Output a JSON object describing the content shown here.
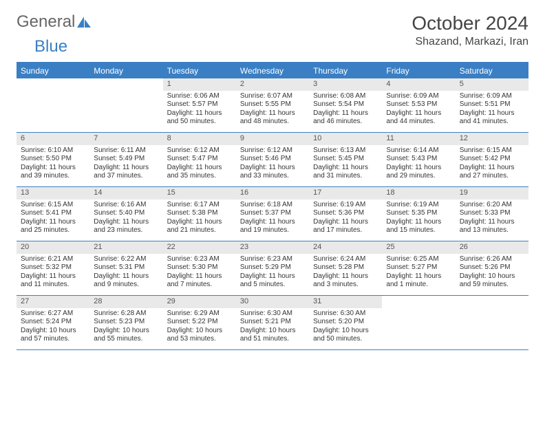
{
  "logo": {
    "text1": "General",
    "text2": "Blue"
  },
  "title": "October 2024",
  "location": "Shazand, Markazi, Iran",
  "colors": {
    "accent": "#3a7fc4",
    "header_bg": "#3a7fc4",
    "daynum_bg": "#e9e9e9"
  },
  "dayNames": [
    "Sunday",
    "Monday",
    "Tuesday",
    "Wednesday",
    "Thursday",
    "Friday",
    "Saturday"
  ],
  "weeks": [
    [
      {
        "n": "",
        "sr": "",
        "ss": "",
        "dl": ""
      },
      {
        "n": "",
        "sr": "",
        "ss": "",
        "dl": ""
      },
      {
        "n": "1",
        "sr": "Sunrise: 6:06 AM",
        "ss": "Sunset: 5:57 PM",
        "dl": "Daylight: 11 hours and 50 minutes."
      },
      {
        "n": "2",
        "sr": "Sunrise: 6:07 AM",
        "ss": "Sunset: 5:55 PM",
        "dl": "Daylight: 11 hours and 48 minutes."
      },
      {
        "n": "3",
        "sr": "Sunrise: 6:08 AM",
        "ss": "Sunset: 5:54 PM",
        "dl": "Daylight: 11 hours and 46 minutes."
      },
      {
        "n": "4",
        "sr": "Sunrise: 6:09 AM",
        "ss": "Sunset: 5:53 PM",
        "dl": "Daylight: 11 hours and 44 minutes."
      },
      {
        "n": "5",
        "sr": "Sunrise: 6:09 AM",
        "ss": "Sunset: 5:51 PM",
        "dl": "Daylight: 11 hours and 41 minutes."
      }
    ],
    [
      {
        "n": "6",
        "sr": "Sunrise: 6:10 AM",
        "ss": "Sunset: 5:50 PM",
        "dl": "Daylight: 11 hours and 39 minutes."
      },
      {
        "n": "7",
        "sr": "Sunrise: 6:11 AM",
        "ss": "Sunset: 5:49 PM",
        "dl": "Daylight: 11 hours and 37 minutes."
      },
      {
        "n": "8",
        "sr": "Sunrise: 6:12 AM",
        "ss": "Sunset: 5:47 PM",
        "dl": "Daylight: 11 hours and 35 minutes."
      },
      {
        "n": "9",
        "sr": "Sunrise: 6:12 AM",
        "ss": "Sunset: 5:46 PM",
        "dl": "Daylight: 11 hours and 33 minutes."
      },
      {
        "n": "10",
        "sr": "Sunrise: 6:13 AM",
        "ss": "Sunset: 5:45 PM",
        "dl": "Daylight: 11 hours and 31 minutes."
      },
      {
        "n": "11",
        "sr": "Sunrise: 6:14 AM",
        "ss": "Sunset: 5:43 PM",
        "dl": "Daylight: 11 hours and 29 minutes."
      },
      {
        "n": "12",
        "sr": "Sunrise: 6:15 AM",
        "ss": "Sunset: 5:42 PM",
        "dl": "Daylight: 11 hours and 27 minutes."
      }
    ],
    [
      {
        "n": "13",
        "sr": "Sunrise: 6:15 AM",
        "ss": "Sunset: 5:41 PM",
        "dl": "Daylight: 11 hours and 25 minutes."
      },
      {
        "n": "14",
        "sr": "Sunrise: 6:16 AM",
        "ss": "Sunset: 5:40 PM",
        "dl": "Daylight: 11 hours and 23 minutes."
      },
      {
        "n": "15",
        "sr": "Sunrise: 6:17 AM",
        "ss": "Sunset: 5:38 PM",
        "dl": "Daylight: 11 hours and 21 minutes."
      },
      {
        "n": "16",
        "sr": "Sunrise: 6:18 AM",
        "ss": "Sunset: 5:37 PM",
        "dl": "Daylight: 11 hours and 19 minutes."
      },
      {
        "n": "17",
        "sr": "Sunrise: 6:19 AM",
        "ss": "Sunset: 5:36 PM",
        "dl": "Daylight: 11 hours and 17 minutes."
      },
      {
        "n": "18",
        "sr": "Sunrise: 6:19 AM",
        "ss": "Sunset: 5:35 PM",
        "dl": "Daylight: 11 hours and 15 minutes."
      },
      {
        "n": "19",
        "sr": "Sunrise: 6:20 AM",
        "ss": "Sunset: 5:33 PM",
        "dl": "Daylight: 11 hours and 13 minutes."
      }
    ],
    [
      {
        "n": "20",
        "sr": "Sunrise: 6:21 AM",
        "ss": "Sunset: 5:32 PM",
        "dl": "Daylight: 11 hours and 11 minutes."
      },
      {
        "n": "21",
        "sr": "Sunrise: 6:22 AM",
        "ss": "Sunset: 5:31 PM",
        "dl": "Daylight: 11 hours and 9 minutes."
      },
      {
        "n": "22",
        "sr": "Sunrise: 6:23 AM",
        "ss": "Sunset: 5:30 PM",
        "dl": "Daylight: 11 hours and 7 minutes."
      },
      {
        "n": "23",
        "sr": "Sunrise: 6:23 AM",
        "ss": "Sunset: 5:29 PM",
        "dl": "Daylight: 11 hours and 5 minutes."
      },
      {
        "n": "24",
        "sr": "Sunrise: 6:24 AM",
        "ss": "Sunset: 5:28 PM",
        "dl": "Daylight: 11 hours and 3 minutes."
      },
      {
        "n": "25",
        "sr": "Sunrise: 6:25 AM",
        "ss": "Sunset: 5:27 PM",
        "dl": "Daylight: 11 hours and 1 minute."
      },
      {
        "n": "26",
        "sr": "Sunrise: 6:26 AM",
        "ss": "Sunset: 5:26 PM",
        "dl": "Daylight: 10 hours and 59 minutes."
      }
    ],
    [
      {
        "n": "27",
        "sr": "Sunrise: 6:27 AM",
        "ss": "Sunset: 5:24 PM",
        "dl": "Daylight: 10 hours and 57 minutes."
      },
      {
        "n": "28",
        "sr": "Sunrise: 6:28 AM",
        "ss": "Sunset: 5:23 PM",
        "dl": "Daylight: 10 hours and 55 minutes."
      },
      {
        "n": "29",
        "sr": "Sunrise: 6:29 AM",
        "ss": "Sunset: 5:22 PM",
        "dl": "Daylight: 10 hours and 53 minutes."
      },
      {
        "n": "30",
        "sr": "Sunrise: 6:30 AM",
        "ss": "Sunset: 5:21 PM",
        "dl": "Daylight: 10 hours and 51 minutes."
      },
      {
        "n": "31",
        "sr": "Sunrise: 6:30 AM",
        "ss": "Sunset: 5:20 PM",
        "dl": "Daylight: 10 hours and 50 minutes."
      },
      {
        "n": "",
        "sr": "",
        "ss": "",
        "dl": ""
      },
      {
        "n": "",
        "sr": "",
        "ss": "",
        "dl": ""
      }
    ]
  ]
}
